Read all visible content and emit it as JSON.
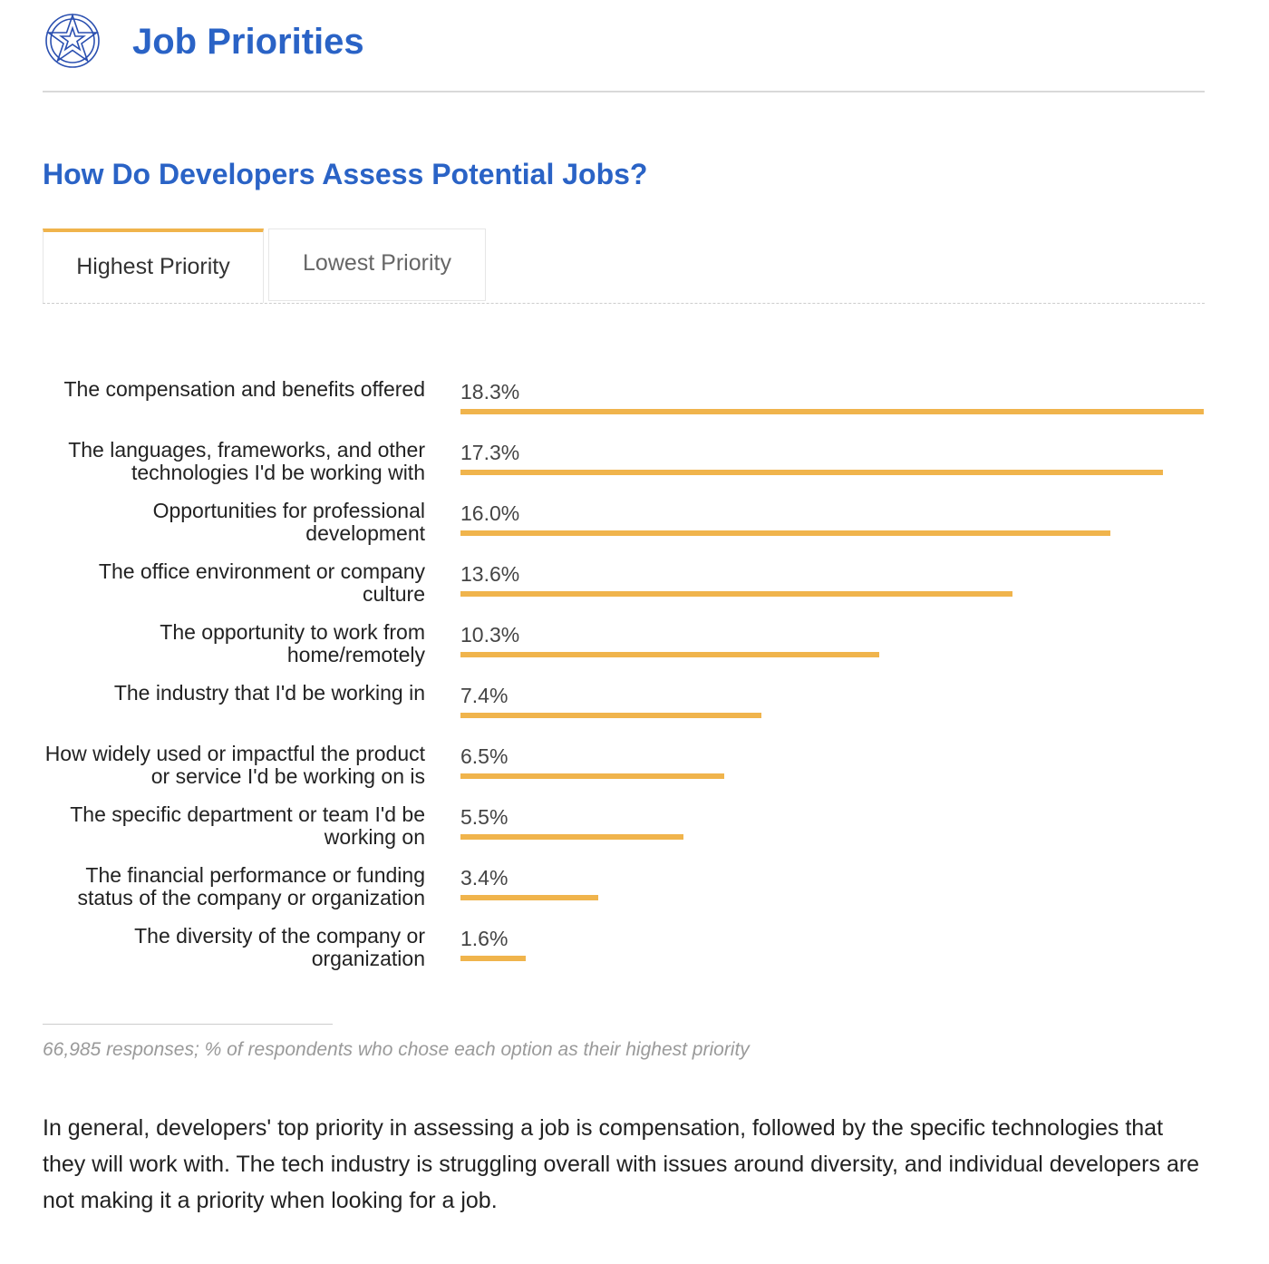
{
  "header": {
    "title": "Job Priorities",
    "logo_icon": "star-badge-icon"
  },
  "section": {
    "title": "How Do Developers Assess Potential Jobs?"
  },
  "tabs": [
    {
      "label": "Highest Priority",
      "active": true
    },
    {
      "label": "Lowest Priority",
      "active": false
    }
  ],
  "colors": {
    "accent": "#f0b44c",
    "title": "#2a63c6"
  },
  "chart_data": {
    "type": "bar",
    "orientation": "horizontal",
    "categories": [
      "The compensation and benefits offered",
      "The languages, frameworks, and other technologies I'd be working with",
      "Opportunities for professional development",
      "The office environment or company culture",
      "The opportunity to work from home/remotely",
      "The industry that I'd be working in",
      "How widely used or impactful the product or service I'd be working on is",
      "The specific department or team I'd be working on",
      "The financial performance or funding status of the company or organization",
      "The diversity of the company or organization"
    ],
    "values": [
      18.3,
      17.3,
      16.0,
      13.6,
      10.3,
      7.4,
      6.5,
      5.5,
      3.4,
      1.6
    ],
    "value_labels": [
      "18.3%",
      "17.3%",
      "16.0%",
      "13.6%",
      "10.3%",
      "7.4%",
      "6.5%",
      "5.5%",
      "3.4%",
      "1.6%"
    ],
    "unit": "%"
  },
  "footnote": "66,985 responses; % of respondents who chose each option as their highest priority",
  "summary": "In general, developers' top priority in assessing a job is compensation, followed by the specific technologies that they will work with. The tech industry is struggling overall with issues around diversity, and individual developers are not making it a priority when looking for a job."
}
